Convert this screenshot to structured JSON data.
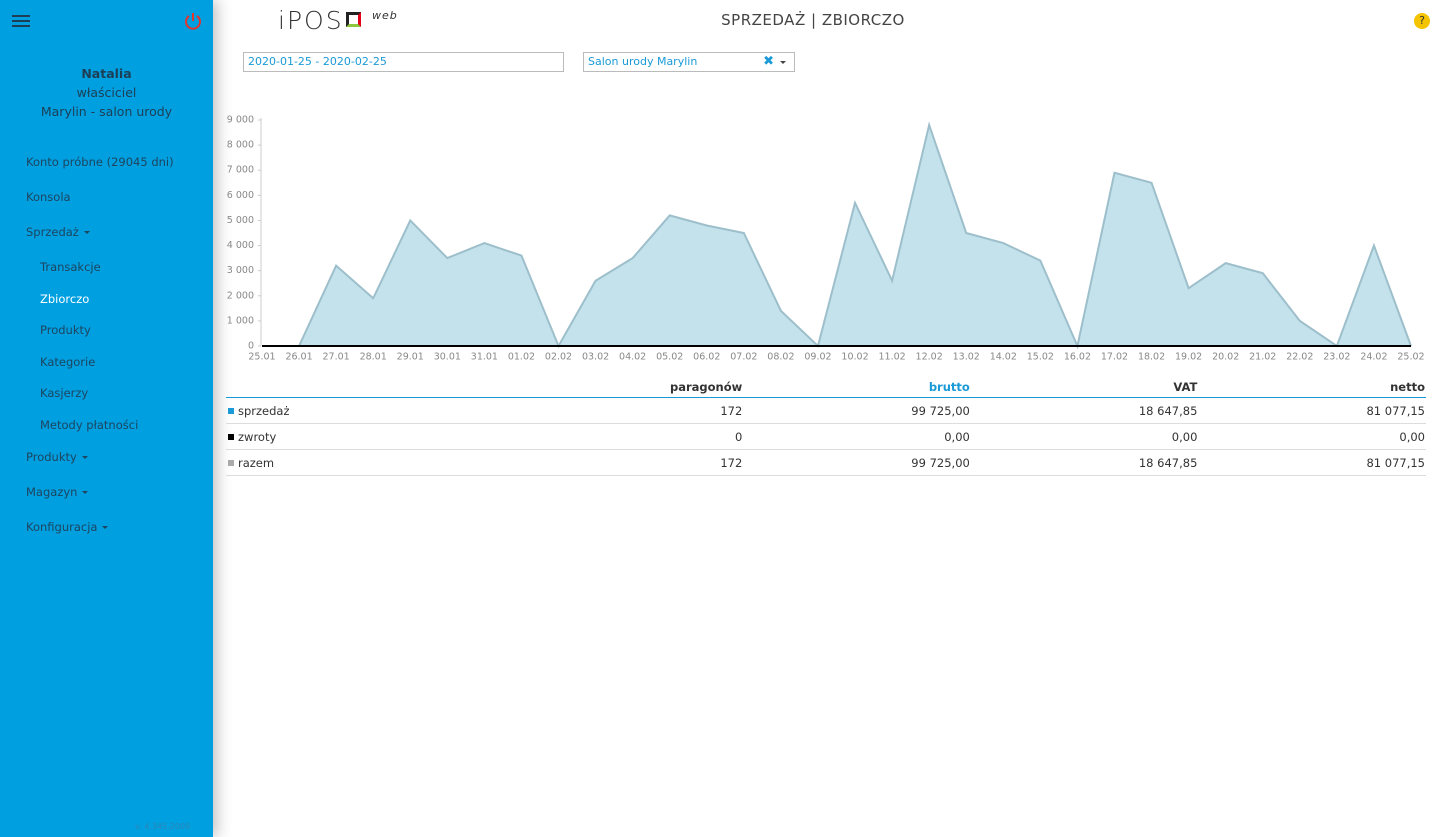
{
  "sidebar": {
    "user": {
      "name": "Natalia",
      "role": "właściciel",
      "company": "Marylin - salon urody"
    },
    "menu": [
      {
        "label": "Konto próbne (29045 dni)"
      },
      {
        "label": "Konsola"
      },
      {
        "label": "Sprzedaż",
        "expandable": true,
        "children": [
          {
            "label": "Transakcje"
          },
          {
            "label": "Zbiorczo",
            "active": true
          },
          {
            "label": "Produkty"
          },
          {
            "label": "Kategorie"
          },
          {
            "label": "Kasjerzy"
          },
          {
            "label": "Metody płatności"
          }
        ]
      },
      {
        "label": "Produkty",
        "expandable": true
      },
      {
        "label": "Magazyn",
        "expandable": true
      },
      {
        "label": "Konfiguracja",
        "expandable": true
      }
    ],
    "version": "v. 4.345.2009"
  },
  "header": {
    "logo": "iPOS",
    "logo_suffix": "web",
    "title": "SPRZEDAŻ | ZBIORCZO",
    "help": "?"
  },
  "filters": {
    "date_range": "2020-01-25 - 2020-02-25",
    "location": "Salon urody Marylin"
  },
  "chart_data": {
    "type": "area",
    "categories": [
      "25.01",
      "26.01",
      "27.01",
      "28.01",
      "29.01",
      "30.01",
      "31.01",
      "01.02",
      "02.02",
      "03.02",
      "04.02",
      "05.02",
      "06.02",
      "07.02",
      "08.02",
      "09.02",
      "10.02",
      "11.02",
      "12.02",
      "13.02",
      "14.02",
      "15.02",
      "16.02",
      "17.02",
      "18.02",
      "19.02",
      "20.02",
      "21.02",
      "22.02",
      "23.02",
      "24.02",
      "25.02"
    ],
    "series": [
      {
        "name": "sprzedaż",
        "color": "#c3e2ec",
        "line_color": "#9dbfcb",
        "values": [
          0,
          0,
          3200,
          1900,
          5000,
          3500,
          4100,
          3600,
          0,
          2600,
          3500,
          5200,
          4800,
          4500,
          1400,
          0,
          5700,
          2600,
          8800,
          4500,
          4100,
          3400,
          0,
          6900,
          6500,
          2300,
          3300,
          2900,
          1000,
          0,
          4000,
          0
        ]
      },
      {
        "name": "zwroty",
        "color": "#000000",
        "values": [
          0,
          0,
          0,
          0,
          0,
          0,
          0,
          0,
          0,
          0,
          0,
          0,
          0,
          0,
          0,
          0,
          0,
          0,
          0,
          0,
          0,
          0,
          0,
          0,
          0,
          0,
          0,
          0,
          0,
          0,
          0,
          0
        ]
      }
    ],
    "ylim": [
      0,
      9000
    ],
    "yticks": [
      0,
      {
        "value": 1000,
        "label": "1 000"
      },
      {
        "value": 2000,
        "label": "2 000"
      },
      {
        "value": 3000,
        "label": "3 000"
      },
      {
        "value": 4000,
        "label": "4 000"
      },
      {
        "value": 5000,
        "label": "5 000"
      },
      {
        "value": 6000,
        "label": "6 000"
      },
      {
        "value": 7000,
        "label": "7 000"
      },
      {
        "value": 8000,
        "label": "8 000"
      },
      {
        "value": 9000,
        "label": "9 000"
      }
    ]
  },
  "table": {
    "columns": [
      "paragonów",
      "brutto",
      "VAT",
      "netto"
    ],
    "rows": [
      {
        "label": "sprzedaż",
        "color": "#1a9ad6",
        "cells": [
          "172",
          "99 725,00",
          "18 647,85",
          "81 077,15"
        ]
      },
      {
        "label": "zwroty",
        "color": "#000000",
        "cells": [
          "0",
          "0,00",
          "0,00",
          "0,00"
        ]
      },
      {
        "label": "razem",
        "color": "#aaaaaa",
        "cells": [
          "172",
          "99 725,00",
          "18 647,85",
          "81 077,15"
        ]
      }
    ]
  }
}
